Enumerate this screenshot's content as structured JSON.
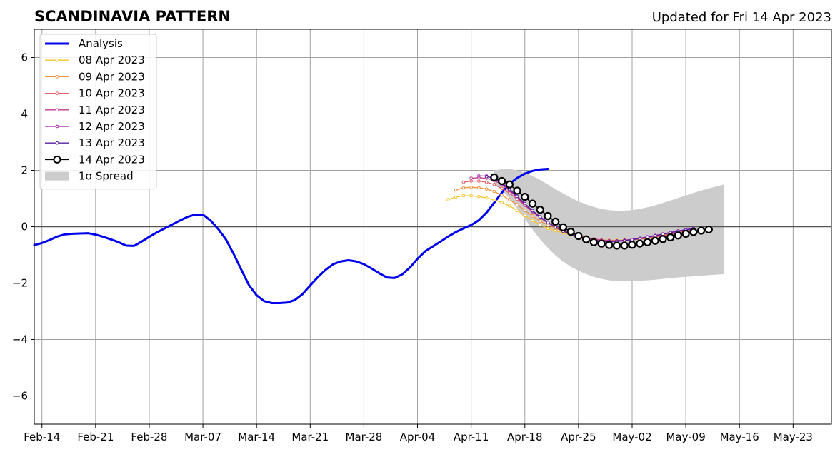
{
  "chart_data": {
    "type": "line",
    "title": "SCANDINAVIA PATTERN",
    "subtitle": "Updated for Fri 14 Apr 2023",
    "xlabel": "",
    "ylabel": "",
    "x_unit": "date",
    "xlim": [
      "2023-02-13",
      "2023-05-28"
    ],
    "ylim": [
      -7,
      7
    ],
    "x_ticks": [
      {
        "date": "2023-02-14",
        "label": "Feb-14"
      },
      {
        "date": "2023-02-21",
        "label": "Feb-21"
      },
      {
        "date": "2023-02-28",
        "label": "Feb-28"
      },
      {
        "date": "2023-03-07",
        "label": "Mar-07"
      },
      {
        "date": "2023-03-14",
        "label": "Mar-14"
      },
      {
        "date": "2023-03-21",
        "label": "Mar-21"
      },
      {
        "date": "2023-03-28",
        "label": "Mar-28"
      },
      {
        "date": "2023-04-04",
        "label": "Apr-04"
      },
      {
        "date": "2023-04-11",
        "label": "Apr-11"
      },
      {
        "date": "2023-04-18",
        "label": "Apr-18"
      },
      {
        "date": "2023-04-25",
        "label": "Apr-25"
      },
      {
        "date": "2023-05-02",
        "label": "May-02"
      },
      {
        "date": "2023-05-09",
        "label": "May-09"
      },
      {
        "date": "2023-05-16",
        "label": "May-16"
      },
      {
        "date": "2023-05-23",
        "label": "May-23"
      }
    ],
    "y_ticks": [
      {
        "value": -6,
        "label": "−6"
      },
      {
        "value": -4,
        "label": "−4"
      },
      {
        "value": -2,
        "label": "−2"
      },
      {
        "value": 0,
        "label": "0"
      },
      {
        "value": 2,
        "label": "2"
      },
      {
        "value": 4,
        "label": "4"
      },
      {
        "value": 6,
        "label": "6"
      }
    ],
    "grid": true,
    "zero_line": true,
    "legend_placement": "top-left",
    "analysis": {
      "name": "Analysis",
      "color": "#0000ee",
      "start": "2023-02-13",
      "values": [
        -0.65,
        -0.58,
        -0.47,
        -0.35,
        -0.27,
        -0.25,
        -0.24,
        -0.23,
        -0.28,
        -0.36,
        -0.45,
        -0.55,
        -0.67,
        -0.68,
        -0.53,
        -0.36,
        -0.2,
        -0.06,
        0.08,
        0.22,
        0.35,
        0.43,
        0.43,
        0.22,
        -0.08,
        -0.45,
        -0.96,
        -1.52,
        -2.07,
        -2.43,
        -2.64,
        -2.71,
        -2.71,
        -2.69,
        -2.6,
        -2.39,
        -2.08,
        -1.79,
        -1.53,
        -1.33,
        -1.23,
        -1.19,
        -1.23,
        -1.33,
        -1.48,
        -1.65,
        -1.8,
        -1.82,
        -1.69,
        -1.45,
        -1.14,
        -0.87,
        -0.7,
        -0.53,
        -0.35,
        -0.19,
        -0.06,
        0.06,
        0.23,
        0.5,
        0.85,
        1.21,
        1.52,
        1.73,
        1.88,
        1.98,
        2.03,
        2.05
      ]
    },
    "forecasts": [
      {
        "name": "08 Apr 2023",
        "color": "#f5c52a",
        "marker": "dot",
        "start": "2023-04-08",
        "values": [
          0.96,
          1.05,
          1.1,
          1.1,
          1.07,
          1.02,
          0.95,
          0.86,
          0.74,
          0.58,
          0.4,
          0.22,
          0.06,
          -0.06,
          -0.14,
          -0.22,
          -0.3,
          -0.38,
          -0.42,
          -0.45,
          -0.47,
          -0.48,
          -0.48,
          -0.47,
          -0.46,
          -0.44,
          -0.42,
          -0.38,
          -0.33,
          -0.27,
          -0.22,
          -0.16,
          -0.11
        ]
      },
      {
        "name": "09 Apr 2023",
        "color": "#f0923b",
        "marker": "dot",
        "start": "2023-04-09",
        "values": [
          1.3,
          1.38,
          1.4,
          1.38,
          1.34,
          1.25,
          1.12,
          0.96,
          0.78,
          0.58,
          0.38,
          0.2,
          0.06,
          -0.06,
          -0.16,
          -0.26,
          -0.34,
          -0.4,
          -0.44,
          -0.47,
          -0.49,
          -0.5,
          -0.49,
          -0.47,
          -0.44,
          -0.4,
          -0.36,
          -0.31,
          -0.26,
          -0.2,
          -0.15,
          -0.1
        ]
      },
      {
        "name": "10 Apr 2023",
        "color": "#e0606b",
        "marker": "dot",
        "start": "2023-04-10",
        "values": [
          1.58,
          1.62,
          1.62,
          1.58,
          1.5,
          1.36,
          1.19,
          0.98,
          0.75,
          0.53,
          0.32,
          0.14,
          0.0,
          -0.12,
          -0.22,
          -0.31,
          -0.38,
          -0.43,
          -0.47,
          -0.49,
          -0.5,
          -0.49,
          -0.47,
          -0.44,
          -0.41,
          -0.37,
          -0.32,
          -0.27,
          -0.21,
          -0.16,
          -0.11
        ]
      },
      {
        "name": "11 Apr 2023",
        "color": "#c23d8e",
        "marker": "dot",
        "start": "2023-04-11",
        "values": [
          1.72,
          1.74,
          1.72,
          1.64,
          1.49,
          1.28,
          1.05,
          0.8,
          0.56,
          0.35,
          0.16,
          0.0,
          -0.13,
          -0.24,
          -0.33,
          -0.4,
          -0.45,
          -0.48,
          -0.5,
          -0.5,
          -0.48,
          -0.45,
          -0.42,
          -0.38,
          -0.33,
          -0.28,
          -0.22,
          -0.17,
          -0.12,
          -0.08
        ]
      },
      {
        "name": "12 Apr 2023",
        "color": "#a020a8",
        "marker": "dot",
        "start": "2023-04-12",
        "values": [
          1.8,
          1.8,
          1.7,
          1.52,
          1.3,
          1.04,
          0.78,
          0.54,
          0.32,
          0.14,
          -0.02,
          -0.15,
          -0.26,
          -0.35,
          -0.42,
          -0.47,
          -0.5,
          -0.51,
          -0.5,
          -0.48,
          -0.45,
          -0.41,
          -0.36,
          -0.31,
          -0.26,
          -0.2,
          -0.15,
          -0.1,
          -0.06
        ]
      },
      {
        "name": "13 Apr 2023",
        "color": "#5a1ea0",
        "marker": "dot",
        "start": "2023-04-13",
        "values": [
          1.78,
          1.72,
          1.56,
          1.34,
          1.08,
          0.82,
          0.57,
          0.35,
          0.15,
          -0.02,
          -0.16,
          -0.28,
          -0.38,
          -0.45,
          -0.5,
          -0.53,
          -0.54,
          -0.52,
          -0.5,
          -0.46,
          -0.42,
          -0.37,
          -0.32,
          -0.26,
          -0.21,
          -0.16,
          -0.11,
          -0.07
        ]
      },
      {
        "name": "14 Apr 2023",
        "color": "#000000",
        "marker": "circle",
        "start": "2023-04-14",
        "values": [
          1.75,
          1.62,
          1.5,
          1.28,
          1.06,
          0.82,
          0.6,
          0.38,
          0.18,
          -0.02,
          -0.18,
          -0.33,
          -0.45,
          -0.55,
          -0.6,
          -0.65,
          -0.67,
          -0.67,
          -0.64,
          -0.6,
          -0.55,
          -0.5,
          -0.44,
          -0.38,
          -0.31,
          -0.25,
          -0.19,
          -0.14,
          -0.1
        ]
      }
    ],
    "spread": {
      "name": "1σ Spread",
      "color": "#cccccc",
      "start": "2023-04-14",
      "upper": [
        2.0,
        2.04,
        2.05,
        2.0,
        1.92,
        1.8,
        1.66,
        1.5,
        1.33,
        1.18,
        1.03,
        0.9,
        0.79,
        0.7,
        0.63,
        0.59,
        0.57,
        0.57,
        0.59,
        0.63,
        0.69,
        0.76,
        0.84,
        0.93,
        1.02,
        1.11,
        1.2,
        1.28,
        1.36,
        1.43,
        1.5
      ],
      "lower": [
        1.5,
        1.3,
        1.0,
        0.65,
        0.28,
        -0.1,
        -0.45,
        -0.75,
        -1.02,
        -1.24,
        -1.42,
        -1.56,
        -1.68,
        -1.78,
        -1.85,
        -1.9,
        -1.93,
        -1.94,
        -1.93,
        -1.92,
        -1.9,
        -1.88,
        -1.85,
        -1.82,
        -1.8,
        -1.78,
        -1.76,
        -1.74,
        -1.72,
        -1.7,
        -1.68
      ]
    }
  }
}
